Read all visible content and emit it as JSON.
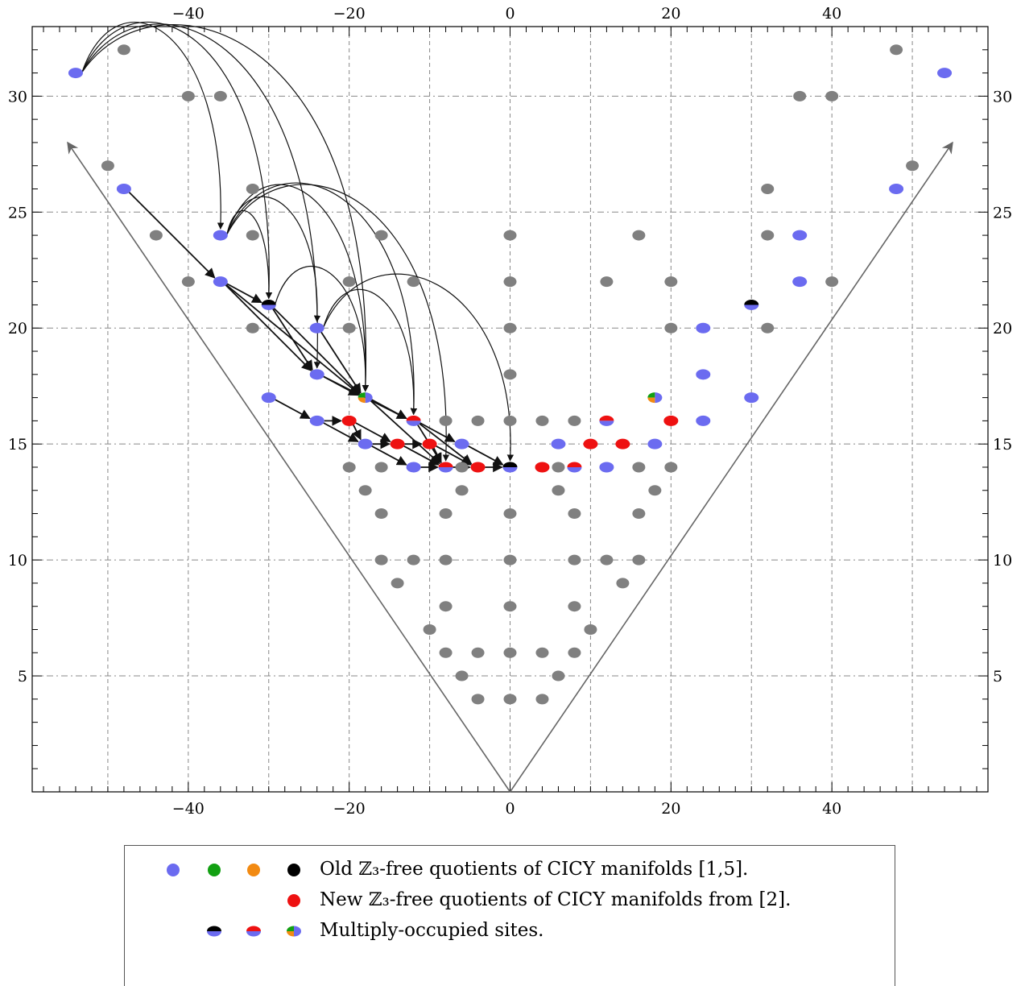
{
  "colors": {
    "old_blue": "#6b6bf0",
    "old_green": "#12a012",
    "old_orange": "#f28a12",
    "old_black": "#000000",
    "new_red": "#ee1111",
    "background_gray": "#808080",
    "boundary_line": "#666666",
    "arrow": "#111111",
    "grid": "#888888"
  },
  "legend": {
    "entries": [
      {
        "id": "old",
        "symbols": [
          "old_blue",
          "old_green",
          "old_orange",
          "old_black"
        ],
        "label": "Old ℤ₃-free quotients of CICY manifolds [1,5]."
      },
      {
        "id": "new",
        "symbols": [
          "new_red"
        ],
        "label": "New ℤ₃-free quotients of CICY manifolds from [2]."
      },
      {
        "id": "multi",
        "symbols": [
          "split_black_blue",
          "split_red_blue",
          "pie_green_orange_blue"
        ],
        "label": "Multiply-occupied sites."
      }
    ]
  },
  "chart_data": {
    "type": "scatter",
    "title": "",
    "xlabel": "",
    "ylabel": "",
    "xlim": [
      -59.4,
      59.4
    ],
    "ylim": [
      0,
      33
    ],
    "x_ticks": [
      -40,
      -20,
      0,
      20,
      40
    ],
    "x_tick_labels": [
      "−40",
      "−20",
      "0",
      "20",
      "40"
    ],
    "y_ticks": [
      5,
      10,
      15,
      20,
      25,
      30
    ],
    "y_tick_labels": [
      "5",
      "10",
      "15",
      "20",
      "25",
      "30"
    ],
    "grid": true,
    "frame_ticks": "all four sides",
    "boundary_lines": [
      [
        -55,
        28
      ],
      [
        55,
        28
      ]
    ],
    "series": [
      {
        "kind": "gray",
        "points": [
          [
            -48,
            32
          ],
          [
            -40,
            30
          ],
          [
            -36,
            30
          ],
          [
            -50,
            27
          ],
          [
            -32,
            26
          ],
          [
            -44,
            24
          ],
          [
            -32,
            24
          ],
          [
            -40,
            22
          ],
          [
            -32,
            20
          ],
          [
            -20,
            22
          ],
          [
            -12,
            22
          ],
          [
            -16,
            24
          ],
          [
            0,
            24
          ],
          [
            0,
            22
          ],
          [
            -20,
            20
          ],
          [
            0,
            20
          ],
          [
            0,
            18
          ],
          [
            -8,
            16
          ],
          [
            -4,
            16
          ],
          [
            0,
            16
          ],
          [
            4,
            16
          ],
          [
            8,
            16
          ],
          [
            -20,
            14
          ],
          [
            -16,
            14
          ],
          [
            -6,
            14
          ],
          [
            6,
            14
          ],
          [
            16,
            14
          ],
          [
            20,
            14
          ],
          [
            -18,
            13
          ],
          [
            -6,
            13
          ],
          [
            6,
            13
          ],
          [
            18,
            13
          ],
          [
            -16,
            12
          ],
          [
            -8,
            12
          ],
          [
            0,
            12
          ],
          [
            8,
            12
          ],
          [
            16,
            12
          ],
          [
            -16,
            10
          ],
          [
            -12,
            10
          ],
          [
            -8,
            10
          ],
          [
            0,
            10
          ],
          [
            8,
            10
          ],
          [
            12,
            10
          ],
          [
            16,
            10
          ],
          [
            -14,
            9
          ],
          [
            14,
            9
          ],
          [
            -8,
            8
          ],
          [
            0,
            8
          ],
          [
            8,
            8
          ],
          [
            -10,
            7
          ],
          [
            10,
            7
          ],
          [
            -8,
            6
          ],
          [
            -4,
            6
          ],
          [
            0,
            6
          ],
          [
            4,
            6
          ],
          [
            8,
            6
          ],
          [
            -6,
            5
          ],
          [
            6,
            5
          ],
          [
            -4,
            4
          ],
          [
            0,
            4
          ],
          [
            4,
            4
          ],
          [
            16,
            24
          ],
          [
            12,
            22
          ],
          [
            20,
            22
          ],
          [
            20,
            20
          ],
          [
            32,
            20
          ],
          [
            32,
            24
          ],
          [
            32,
            26
          ],
          [
            36,
            30
          ],
          [
            40,
            30
          ],
          [
            40,
            22
          ],
          [
            48,
            32
          ],
          [
            50,
            27
          ]
        ]
      },
      {
        "kind": "old_blue",
        "points": [
          [
            -54,
            31
          ],
          [
            -48,
            26
          ],
          [
            -36,
            24
          ],
          [
            -36,
            22
          ],
          [
            -30,
            17
          ],
          [
            -24,
            20
          ],
          [
            -24,
            18
          ],
          [
            -24,
            16
          ],
          [
            -18,
            15
          ],
          [
            -12,
            14
          ],
          [
            -6,
            15
          ],
          [
            6,
            15
          ],
          [
            12,
            14
          ],
          [
            18,
            15
          ],
          [
            24,
            20
          ],
          [
            24,
            18
          ],
          [
            24,
            16
          ],
          [
            30,
            17
          ],
          [
            36,
            24
          ],
          [
            36,
            22
          ],
          [
            48,
            26
          ],
          [
            54,
            31
          ]
        ]
      },
      {
        "kind": "new_red",
        "points": [
          [
            -20,
            16
          ],
          [
            -14,
            15
          ],
          [
            -10,
            15
          ],
          [
            -4,
            14
          ],
          [
            4,
            14
          ],
          [
            10,
            15
          ],
          [
            14,
            15
          ],
          [
            20,
            16
          ]
        ]
      },
      {
        "kind": "split_black_blue",
        "points": [
          [
            -30,
            21
          ],
          [
            0,
            14
          ],
          [
            30,
            21
          ]
        ]
      },
      {
        "kind": "split_red_blue",
        "points": [
          [
            -12,
            16
          ],
          [
            -8,
            14
          ],
          [
            8,
            14
          ],
          [
            12,
            16
          ]
        ]
      },
      {
        "kind": "pie_green_orange_blue",
        "points": [
          [
            -18,
            17
          ],
          [
            18,
            17
          ]
        ]
      }
    ],
    "curved_arrows": [
      [
        [
          -54,
          31
        ],
        [
          -36,
          24
        ]
      ],
      [
        [
          -54,
          31
        ],
        [
          -30,
          21
        ]
      ],
      [
        [
          -54,
          31
        ],
        [
          -24,
          18
        ]
      ],
      [
        [
          -54,
          31
        ],
        [
          -18,
          17
        ]
      ],
      [
        [
          -36,
          24
        ],
        [
          -30,
          21
        ]
      ],
      [
        [
          -36,
          24
        ],
        [
          -24,
          20
        ]
      ],
      [
        [
          -36,
          24
        ],
        [
          -18,
          17
        ]
      ],
      [
        [
          -36,
          24
        ],
        [
          -12,
          16
        ]
      ],
      [
        [
          -36,
          24
        ],
        [
          -8,
          14
        ]
      ],
      [
        [
          -24,
          20
        ],
        [
          -12,
          16
        ]
      ],
      [
        [
          -24,
          20
        ],
        [
          0,
          14
        ]
      ],
      [
        [
          -30,
          21
        ],
        [
          -18,
          17
        ]
      ]
    ],
    "straight_arrows": [
      [
        [
          -48,
          26
        ],
        [
          -36,
          22
        ]
      ],
      [
        [
          -36,
          22
        ],
        [
          -30,
          21
        ]
      ],
      [
        [
          -36,
          22
        ],
        [
          -24,
          18
        ]
      ],
      [
        [
          -36,
          22
        ],
        [
          -18,
          17
        ]
      ],
      [
        [
          -30,
          21
        ],
        [
          -24,
          18
        ]
      ],
      [
        [
          -30,
          21
        ],
        [
          -18,
          17
        ]
      ],
      [
        [
          -24,
          20
        ],
        [
          -18,
          17
        ]
      ],
      [
        [
          -24,
          18
        ],
        [
          -18,
          17
        ]
      ],
      [
        [
          -18,
          17
        ],
        [
          -12,
          16
        ]
      ],
      [
        [
          -12,
          16
        ],
        [
          -6,
          15
        ]
      ],
      [
        [
          -6,
          15
        ],
        [
          0,
          14
        ]
      ],
      [
        [
          -30,
          17
        ],
        [
          -24,
          16
        ]
      ],
      [
        [
          -24,
          16
        ],
        [
          -20,
          16
        ]
      ],
      [
        [
          -20,
          16
        ],
        [
          -18,
          15
        ]
      ],
      [
        [
          -18,
          15
        ],
        [
          -14,
          15
        ]
      ],
      [
        [
          -14,
          15
        ],
        [
          -10,
          15
        ]
      ],
      [
        [
          -10,
          15
        ],
        [
          -8,
          14
        ]
      ],
      [
        [
          -8,
          14
        ],
        [
          -4,
          14
        ]
      ],
      [
        [
          -4,
          14
        ],
        [
          0,
          14
        ]
      ],
      [
        [
          -24,
          16
        ],
        [
          -18,
          15
        ]
      ],
      [
        [
          -18,
          15
        ],
        [
          -12,
          14
        ]
      ],
      [
        [
          -12,
          14
        ],
        [
          -8,
          14
        ]
      ],
      [
        [
          -20,
          16
        ],
        [
          -14,
          15
        ]
      ],
      [
        [
          -14,
          15
        ],
        [
          -8,
          14
        ]
      ],
      [
        [
          -12,
          16
        ],
        [
          -8,
          14
        ]
      ],
      [
        [
          -18,
          17
        ],
        [
          -8,
          14
        ]
      ],
      [
        [
          -24,
          18
        ],
        [
          -12,
          16
        ]
      ],
      [
        [
          -10,
          15
        ],
        [
          -4,
          14
        ]
      ],
      [
        [
          -12,
          16
        ],
        [
          -4,
          14
        ]
      ]
    ]
  }
}
